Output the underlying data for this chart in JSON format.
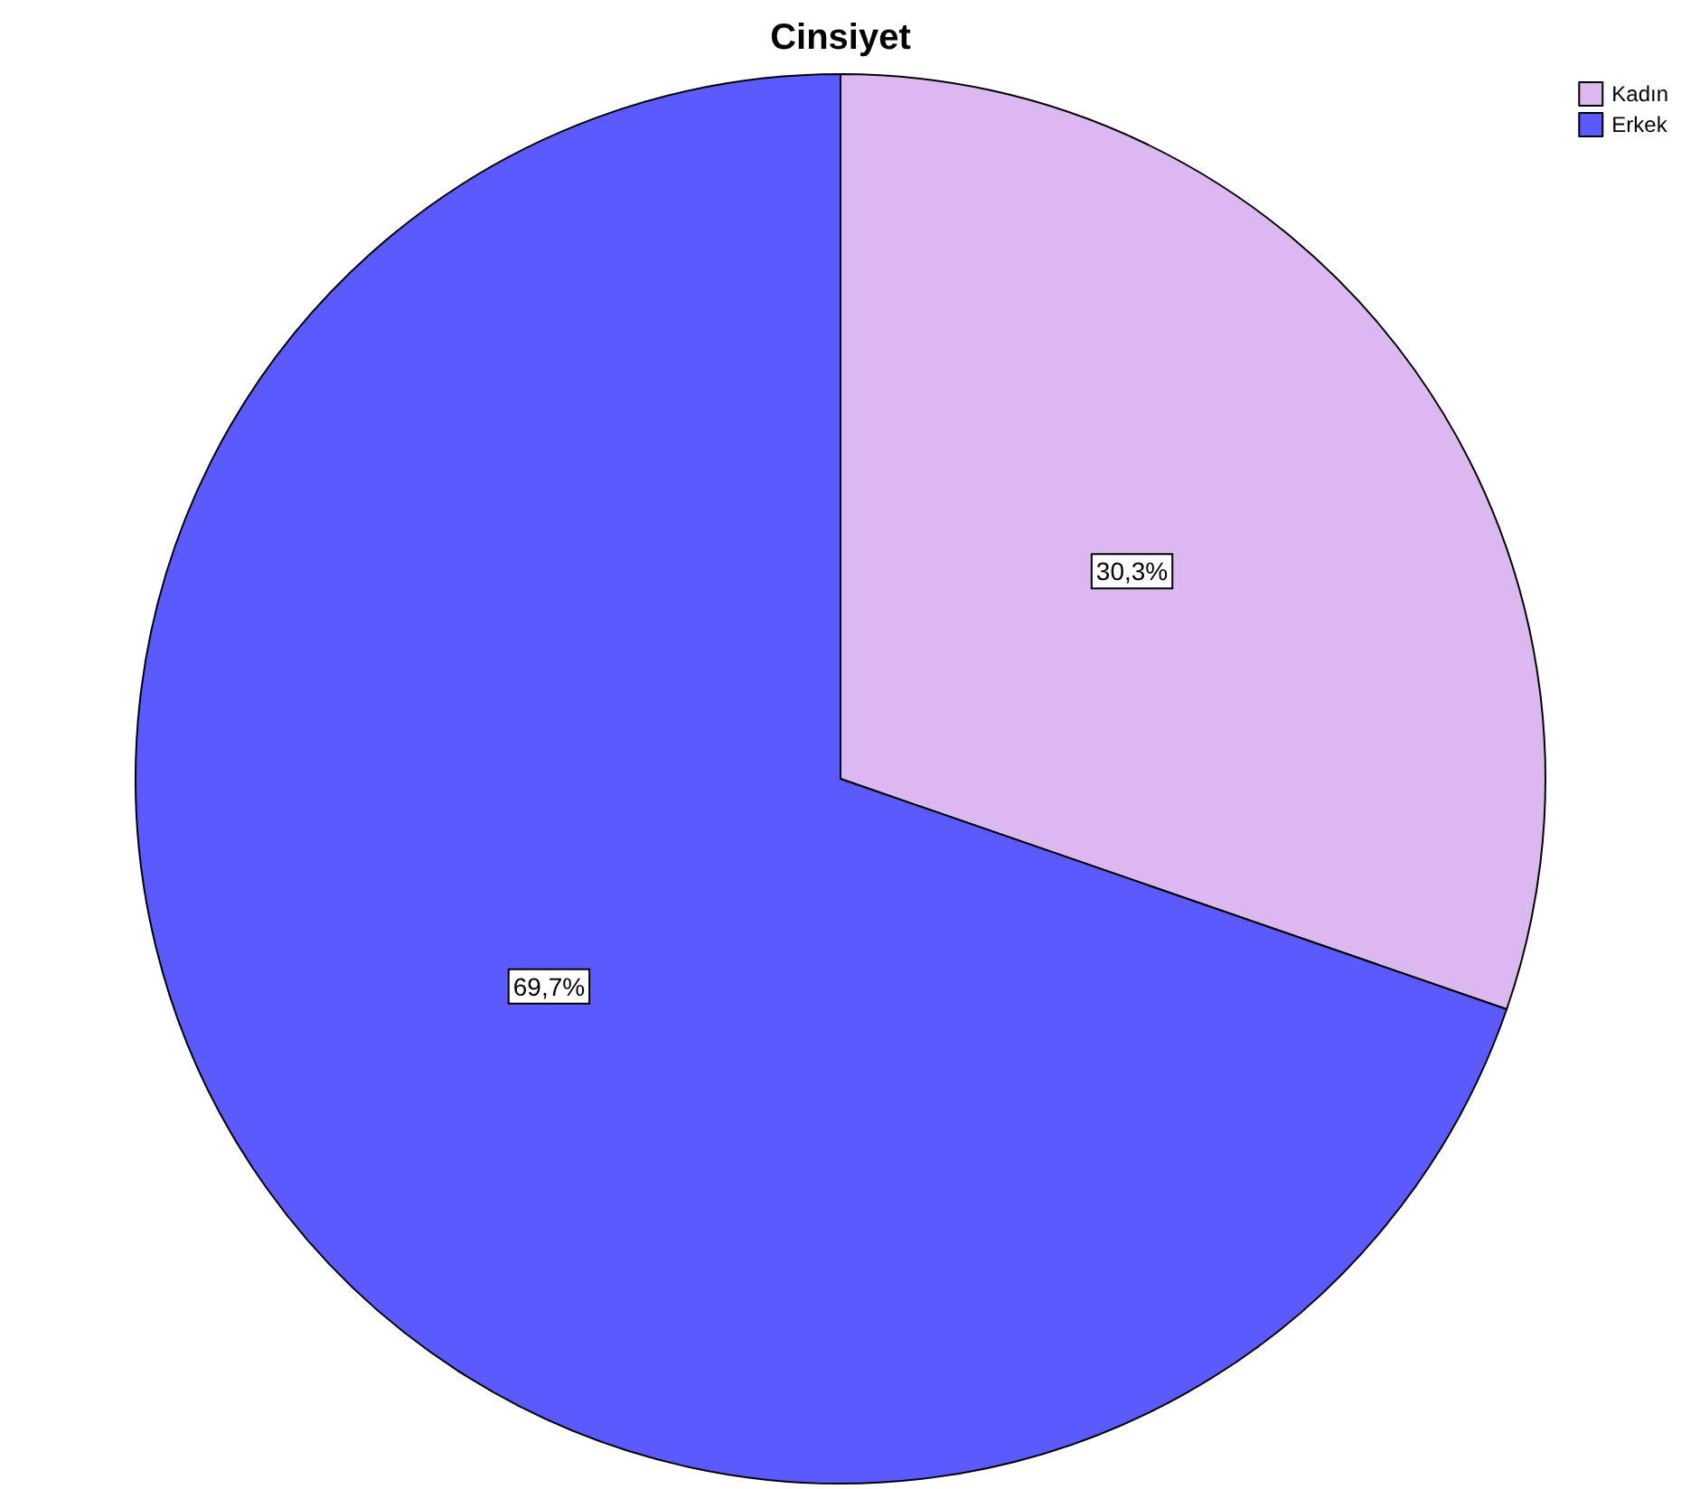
{
  "chart_data": {
    "type": "pie",
    "title": "Cinsiyet",
    "categories": [
      "Kadın",
      "Erkek"
    ],
    "values": [
      30.3,
      69.7
    ],
    "colors": [
      "#dcb8f0",
      "#5a5aff"
    ],
    "value_labels": [
      "30,3%",
      "69,7%"
    ],
    "legend": "top right"
  }
}
